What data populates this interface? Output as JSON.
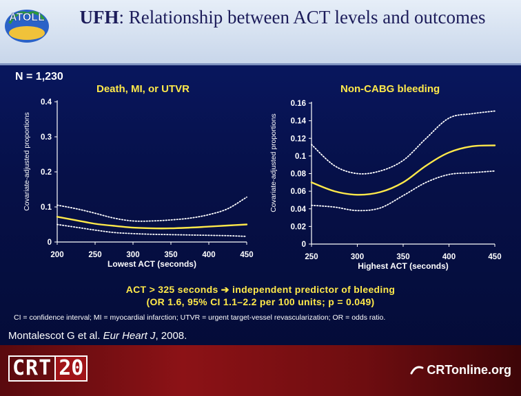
{
  "header": {
    "logo_text": "ATOLL",
    "title_bold": "UFH",
    "title_rest": ": Relationship between ACT levels and outcomes"
  },
  "n_label": "N = 1,230",
  "chart_data": [
    {
      "type": "line",
      "title": "Death, MI, or UTVR",
      "xlabel": "Lowest ACT (seconds)",
      "ylabel": "Covariate-adjusted proportions",
      "xlim": [
        200,
        450
      ],
      "ylim": [
        0,
        0.4
      ],
      "xticks": [
        "200",
        "250",
        "300",
        "350",
        "400",
        "450"
      ],
      "yticks": [
        "0",
        "0.1",
        "0.2",
        "0.3",
        "0.4"
      ],
      "x": [
        200,
        225,
        250,
        275,
        300,
        325,
        350,
        375,
        400,
        425,
        450
      ],
      "series": [
        {
          "role": "upper_ci",
          "style": "dotted",
          "values": [
            0.105,
            0.095,
            0.082,
            0.068,
            0.06,
            0.06,
            0.063,
            0.068,
            0.078,
            0.095,
            0.128
          ]
        },
        {
          "role": "estimate",
          "style": "solid",
          "values": [
            0.072,
            0.062,
            0.052,
            0.046,
            0.041,
            0.039,
            0.039,
            0.041,
            0.044,
            0.047,
            0.05
          ]
        },
        {
          "role": "lower_ci",
          "style": "dotted",
          "values": [
            0.05,
            0.042,
            0.034,
            0.027,
            0.024,
            0.022,
            0.021,
            0.02,
            0.019,
            0.018,
            0.016
          ]
        }
      ],
      "grid": false,
      "colors": {
        "estimate": "#ffe94a",
        "ci": "#ffffff"
      }
    },
    {
      "type": "line",
      "title": "Non-CABG bleeding",
      "xlabel": "Highest ACT (seconds)",
      "ylabel": "Covariate-adjusted proportions",
      "xlim": [
        250,
        450
      ],
      "ylim": [
        0,
        0.16
      ],
      "xticks": [
        "250",
        "300",
        "350",
        "400",
        "450"
      ],
      "yticks": [
        "0",
        "0.02",
        "0.04",
        "0.06",
        "0.08",
        "0.1",
        "0.12",
        "0.14",
        "0.16"
      ],
      "x": [
        250,
        275,
        300,
        325,
        350,
        375,
        400,
        425,
        450
      ],
      "series": [
        {
          "role": "upper_ci",
          "style": "dotted",
          "values": [
            0.113,
            0.089,
            0.08,
            0.083,
            0.095,
            0.12,
            0.143,
            0.148,
            0.151
          ]
        },
        {
          "role": "estimate",
          "style": "solid",
          "values": [
            0.07,
            0.06,
            0.056,
            0.059,
            0.07,
            0.089,
            0.104,
            0.111,
            0.112
          ]
        },
        {
          "role": "lower_ci",
          "style": "dotted",
          "values": [
            0.044,
            0.042,
            0.038,
            0.041,
            0.055,
            0.07,
            0.079,
            0.081,
            0.083
          ]
        }
      ],
      "grid": false,
      "colors": {
        "estimate": "#ffe94a",
        "ci": "#ffffff"
      }
    }
  ],
  "finding": {
    "line1_a": "ACT > 325 seconds",
    "line1_arrow": "➔",
    "line1_b": "independent predictor of bleeding",
    "line2": "(OR 1.6, 95% CI 1.1–2.2 per 100 units; p = 0.049)"
  },
  "abbreviations": "CI = confidence interval; MI = myocardial infarction; UTVR = urgent target-vessel revascularization; OR = odds ratio.",
  "citation": {
    "authors": "Montalescot G et al. ",
    "journal": "Eur Heart J",
    "year": ", 2008."
  },
  "footer": {
    "crt_text": "CRT",
    "crt_num": "20",
    "crtonline": "CRTonline.org"
  }
}
